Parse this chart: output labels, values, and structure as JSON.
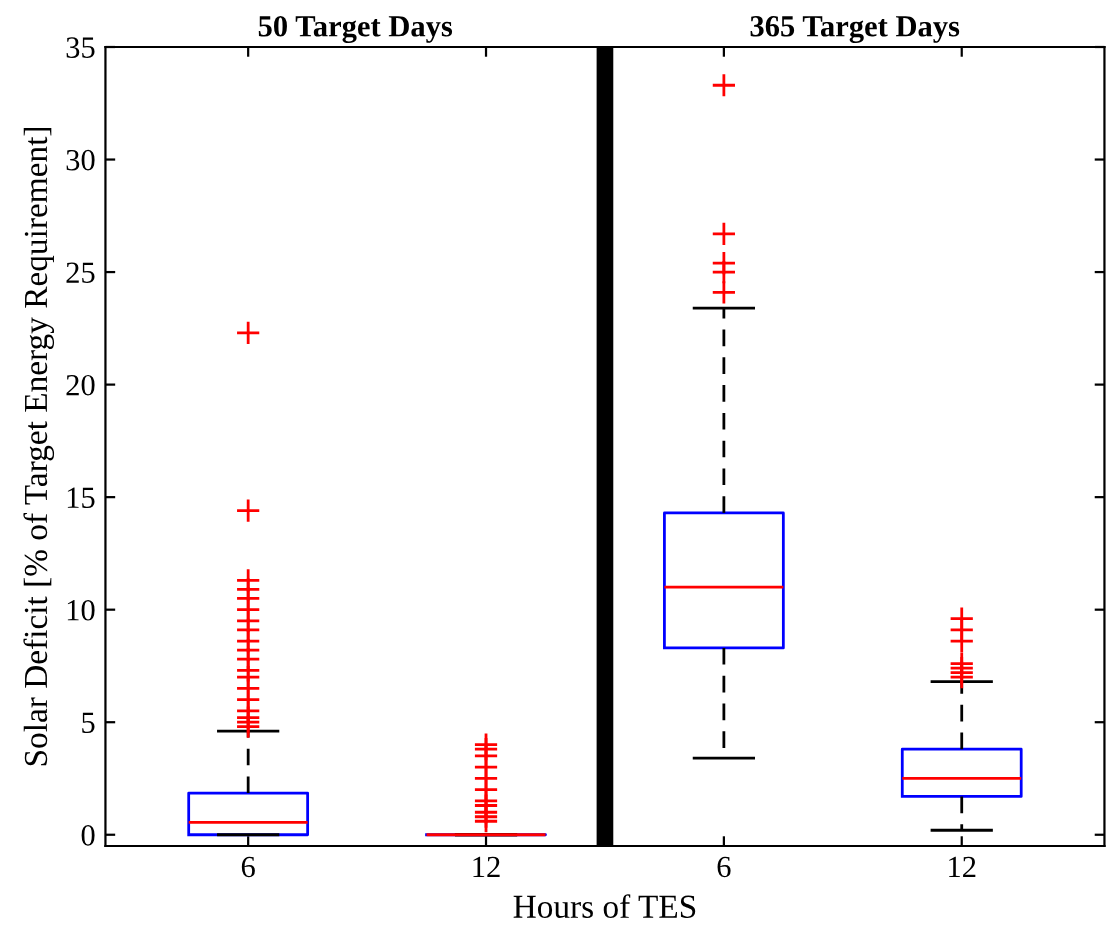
{
  "chart_data": {
    "type": "box",
    "xlabel": "Hours of TES",
    "ylabel": "Solar Deficit [% of Target Energy Requirement]",
    "annotations": [
      "50 Target Days",
      "365 Target Days"
    ],
    "categories": [
      "6",
      "12",
      "6",
      "12"
    ],
    "series": [
      {
        "color": "#0000ff",
        "boxes": [
          {
            "low": 0,
            "q1": 0,
            "median": 0.55,
            "q3": 1.85,
            "high": 4.6,
            "outliers": [
              4.8,
              5.0,
              5.2,
              5.5,
              6.0,
              6.5,
              7.0,
              7.3,
              7.8,
              8.2,
              8.6,
              9.1,
              9.5,
              10.0,
              10.5,
              10.9,
              11.3,
              14.4,
              22.3
            ]
          },
          {
            "low": 0,
            "q1": 0,
            "median": 0,
            "q3": 0,
            "high": 0,
            "outliers": [
              0.6,
              0.8,
              1.0,
              1.3,
              1.5,
              2.0,
              2.5,
              3.0,
              3.5,
              3.8,
              4.0
            ]
          },
          {
            "low": 3.4,
            "q1": 8.3,
            "median": 11.0,
            "q3": 14.3,
            "high": 23.4,
            "outliers": [
              24.1,
              25.0,
              25.4,
              26.7,
              33.3
            ]
          },
          {
            "low": 0.2,
            "q1": 1.7,
            "median": 2.5,
            "q3": 3.8,
            "high": 6.8,
            "outliers": [
              7.0,
              7.2,
              7.4,
              7.6,
              8.6,
              9.1,
              9.6
            ]
          }
        ]
      }
    ],
    "ylim": [
      -0.5,
      35
    ],
    "yticks": [
      0,
      5,
      10,
      15,
      20,
      25,
      30,
      35
    ],
    "grid": false,
    "legend": false
  }
}
